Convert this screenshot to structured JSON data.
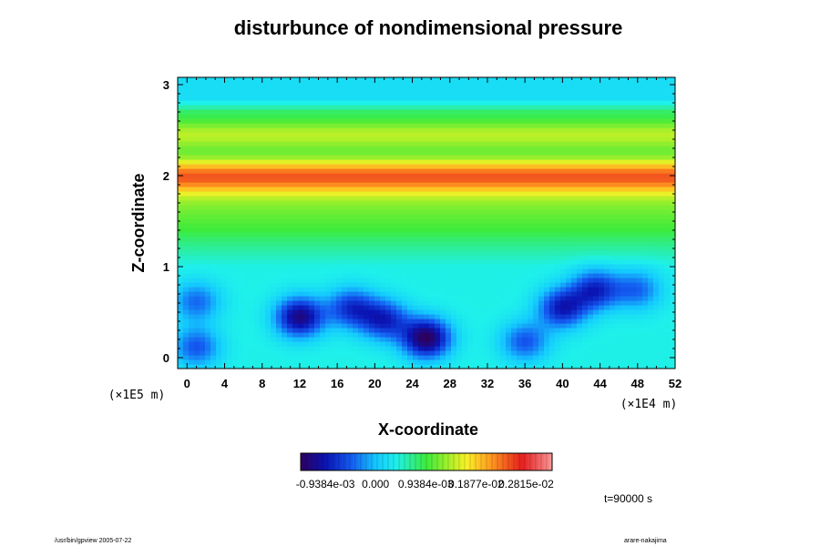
{
  "chart_data": {
    "type": "heatmap",
    "title": "disturbunce of nondimensional pressure",
    "xlabel": "X-coordinate",
    "ylabel": "Z-coordinate",
    "x_unit_label": "(×1E4 m)",
    "y_unit_label": "(×1E5 m)",
    "xlim": [
      -1,
      52
    ],
    "ylim": [
      -0.12,
      3.08
    ],
    "x_ticks": [
      0,
      4,
      8,
      12,
      16,
      20,
      24,
      28,
      32,
      36,
      40,
      44,
      48,
      52
    ],
    "y_ticks": [
      0,
      1,
      2,
      3
    ],
    "colorbar": {
      "vmin": -0.0014,
      "vmax": 0.0033,
      "tick_values": [
        -0.0009384,
        0.0,
        0.0009384,
        0.001877,
        0.002815
      ],
      "tick_labels": [
        "-0.9384e-03",
        "0.000",
        "0.9384e-03",
        "0.1877e-02",
        "0.2815e-02"
      ]
    },
    "field_description": {
      "background_value": 0.0004,
      "bands": [
        {
          "z": 2.0,
          "value": 0.0022,
          "width": 0.18
        },
        {
          "z": 2.45,
          "value": 0.0012,
          "width": 0.15
        },
        {
          "z": 1.75,
          "value": 0.0009,
          "width": 0.35
        }
      ],
      "blobs": [
        {
          "x": 12,
          "z": 0.45,
          "value": -0.0012
        },
        {
          "x": 25.5,
          "z": 0.22,
          "value": -0.0014
        },
        {
          "x": 21,
          "z": 0.42,
          "value": -0.0008
        },
        {
          "x": 17.5,
          "z": 0.55,
          "value": -0.0007
        },
        {
          "x": 40,
          "z": 0.55,
          "value": -0.0009
        },
        {
          "x": 43.5,
          "z": 0.75,
          "value": -0.0008
        },
        {
          "x": 36,
          "z": 0.18,
          "value": -0.0005
        },
        {
          "x": 1,
          "z": 0.62,
          "value": -0.0004
        },
        {
          "x": 1,
          "z": 0.12,
          "value": -0.0005
        },
        {
          "x": 48,
          "z": 0.75,
          "value": -0.0004
        }
      ]
    }
  },
  "annotations": {
    "time_label": "t=90000 s",
    "footer_left": "/usr/bin/gpview 2005-07-22",
    "footer_right": "arare-nakajima"
  }
}
